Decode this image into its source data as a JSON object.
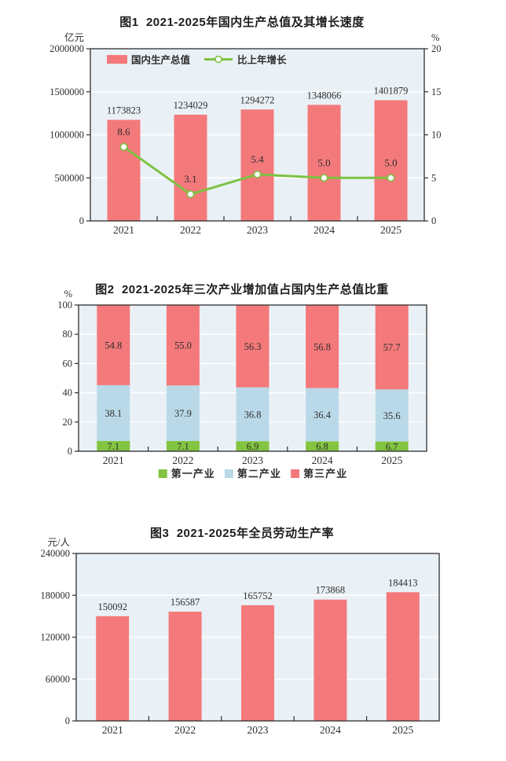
{
  "colors": {
    "page_bg": "#ffffff",
    "plot_bg": "#eaf1f6",
    "grid": "#ffffff",
    "axis": "#2e2e2e",
    "text": "#2e2e2e",
    "bar_red": "#f4797b",
    "line_green": "#7dc242",
    "industry_green": "#83c441",
    "industry_blue": "#b9d9e8"
  },
  "chart_data": [
    {
      "type": "bar+line",
      "title": "图1  2021-2025年国内生产总值及其增长速度",
      "categories": [
        "2021",
        "2022",
        "2023",
        "2024",
        "2025"
      ],
      "left_axis": {
        "unit": "亿元",
        "max": 2000000,
        "ticks": [
          0,
          500000,
          1000000,
          1500000,
          2000000
        ],
        "tick_labels": [
          "0",
          "500000",
          "1000000",
          "1500000",
          "2000000"
        ]
      },
      "right_axis": {
        "unit": "%",
        "max": 20,
        "ticks": [
          0,
          5,
          10,
          15,
          20
        ],
        "tick_labels": [
          "0",
          "5",
          "10",
          "15",
          "20"
        ]
      },
      "series": [
        {
          "name": "国内生产总值",
          "type": "bar",
          "axis": "left",
          "color_key": "bar_red",
          "values": [
            1173823,
            1234029,
            1294272,
            1348066,
            1401879
          ],
          "labels": [
            "1173823",
            "1234029",
            "1294272",
            "1348066",
            "1401879"
          ]
        },
        {
          "name": "比上年增长",
          "type": "line",
          "axis": "right",
          "color_key": "line_green",
          "values": [
            8.6,
            3.1,
            5.4,
            5.0,
            5.0
          ],
          "labels": [
            "8.6",
            "3.1",
            "5.4",
            "5.0",
            "5.0"
          ]
        }
      ],
      "legend": {
        "position": "inside-top-left",
        "items": [
          "国内生产总值",
          "比上年增长"
        ]
      },
      "grid": "on"
    },
    {
      "type": "stacked-bar",
      "title": "图2  2021-2025年三次产业增加值占国内生产总值比重",
      "categories": [
        "2021",
        "2022",
        "2023",
        "2024",
        "2025"
      ],
      "left_axis": {
        "unit": "%",
        "max": 100,
        "ticks": [
          0,
          20,
          40,
          60,
          80,
          100
        ],
        "tick_labels": [
          "0",
          "20",
          "40",
          "60",
          "80",
          "100"
        ]
      },
      "series": [
        {
          "name": "第一产业",
          "color_key": "industry_green",
          "values": [
            7.1,
            7.1,
            6.9,
            6.8,
            6.7
          ],
          "labels": [
            "7.1",
            "7.1",
            "6.9",
            "6.8",
            "6.7"
          ]
        },
        {
          "name": "第二产业",
          "color_key": "industry_blue",
          "values": [
            38.1,
            37.9,
            36.8,
            36.4,
            35.6
          ],
          "labels": [
            "38.1",
            "37.9",
            "36.8",
            "36.4",
            "35.6"
          ]
        },
        {
          "name": "第三产业",
          "color_key": "bar_red",
          "values": [
            54.8,
            55.0,
            56.3,
            56.8,
            57.7
          ],
          "labels": [
            "54.8",
            "55.0",
            "56.3",
            "56.8",
            "57.7"
          ]
        }
      ],
      "legend": {
        "position": "bottom",
        "items": [
          "第一产业",
          "第二产业",
          "第三产业"
        ]
      },
      "grid": "on"
    },
    {
      "type": "bar",
      "title": "图3  2021-2025年全员劳动生产率",
      "categories": [
        "2021",
        "2022",
        "2023",
        "2024",
        "2025"
      ],
      "left_axis": {
        "unit": "元/人",
        "max": 240000,
        "ticks": [
          0,
          60000,
          120000,
          180000,
          240000
        ],
        "tick_labels": [
          "0",
          "60000",
          "120000",
          "180000",
          "240000"
        ]
      },
      "series": [
        {
          "name": "全员劳动生产率",
          "type": "bar",
          "color_key": "bar_red",
          "values": [
            150092,
            156587,
            165752,
            173868,
            184413
          ],
          "labels": [
            "150092",
            "156587",
            "165752",
            "173868",
            "184413"
          ]
        }
      ],
      "legend": {
        "position": "none",
        "items": []
      },
      "grid": "on"
    }
  ]
}
